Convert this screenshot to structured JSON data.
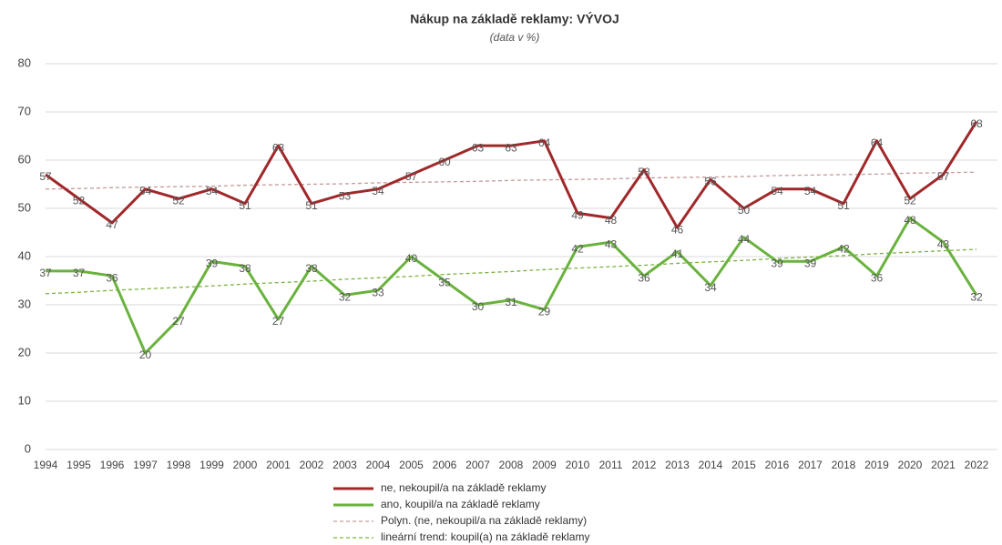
{
  "chart_data": {
    "type": "line",
    "title": "Nákup na základě reklamy: VÝVOJ",
    "subtitle": "(data v %)",
    "categories": [
      "1994",
      "1995",
      "1996",
      "1997",
      "1998",
      "1999",
      "2000",
      "2001",
      "2002",
      "2003",
      "2004",
      "2005",
      "2006",
      "2007",
      "2008",
      "2009",
      "2010",
      "2011",
      "2012",
      "2013",
      "2014",
      "2015",
      "2016",
      "2017",
      "2018",
      "2019",
      "2020",
      "2021",
      "2022"
    ],
    "series": [
      {
        "name": "ne, nekoupil/a na základě reklamy",
        "color": "#a0282a",
        "style": "solid",
        "show_labels": true,
        "values": [
          57,
          52,
          47,
          54,
          52,
          54,
          51,
          63,
          51,
          53,
          54,
          57,
          60,
          63,
          63,
          64,
          49,
          48,
          58,
          46,
          56,
          50,
          54,
          54,
          51,
          64,
          52,
          57,
          68
        ]
      },
      {
        "name": "ano, koupil/a na základě reklamy",
        "color": "#6ab23e",
        "style": "solid",
        "show_labels": true,
        "values": [
          37,
          37,
          36,
          20,
          27,
          39,
          38,
          27,
          38,
          32,
          33,
          40,
          35,
          30,
          31,
          29,
          42,
          43,
          36,
          41,
          34,
          44,
          39,
          39,
          42,
          36,
          48,
          43,
          32
        ]
      },
      {
        "name": "Polyn. (ne, nekoupil/a na základě reklamy)",
        "color": "#c49a9a",
        "style": "dashed",
        "show_labels": false,
        "values": [
          54,
          54.1,
          54.3,
          54.4,
          54.5,
          54.6,
          54.8,
          54.9,
          55,
          55.1,
          55.3,
          55.4,
          55.5,
          55.6,
          55.8,
          55.9,
          56,
          56.1,
          56.3,
          56.4,
          56.5,
          56.6,
          56.8,
          56.9,
          57,
          57.1,
          57.3,
          57.4,
          57.5
        ]
      },
      {
        "name": "lineární trend: koupil(a) na základě reklamy",
        "color": "#7cb342",
        "style": "dashed",
        "show_labels": false,
        "values": [
          32.3,
          32.6,
          33,
          33.3,
          33.6,
          33.9,
          34.3,
          34.6,
          34.9,
          35.3,
          35.6,
          35.9,
          36.3,
          36.6,
          36.9,
          37.3,
          37.6,
          37.9,
          38.2,
          38.6,
          38.9,
          39.2,
          39.6,
          39.9,
          40.2,
          40.6,
          40.9,
          41.2,
          41.5
        ]
      }
    ],
    "ylim": [
      0,
      80
    ],
    "yticks": [
      0,
      10,
      20,
      30,
      40,
      50,
      60,
      70,
      80
    ],
    "grid": true,
    "legend": "bottom"
  }
}
